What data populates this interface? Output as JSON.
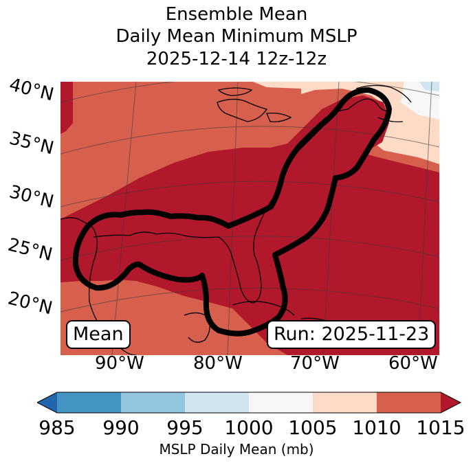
{
  "title": {
    "line1": "Ensemble Mean",
    "line2": "Daily Mean Minimum MSLP",
    "line3": "2025-12-14 12z-12z"
  },
  "map": {
    "lat_labels": [
      "40°N",
      "35°N",
      "30°N",
      "25°N",
      "20°N"
    ],
    "lon_labels": [
      "90°W",
      "80°W",
      "70°W",
      "60°W"
    ],
    "mean_label": "Mean",
    "run_label": "Run: 2025-11-23",
    "colors": {
      "c1010_1015": "#d6604d",
      "c1015plus": "#b2182b",
      "c1005_1010": "#fddbc7",
      "c1000_1005": "#f7f7f7",
      "c995_1000": "#d1e5f0",
      "contour": "#000000"
    }
  },
  "colorbar": {
    "label": "MSLP Daily Mean (mb)",
    "ticks": [
      "985",
      "990",
      "995",
      "1000",
      "1005",
      "1010",
      "1015"
    ],
    "colors": [
      "#2166ac",
      "#4393c3",
      "#92c5de",
      "#d1e5f0",
      "#f7f7f7",
      "#fddbc7",
      "#d6604d",
      "#b2182b"
    ]
  }
}
